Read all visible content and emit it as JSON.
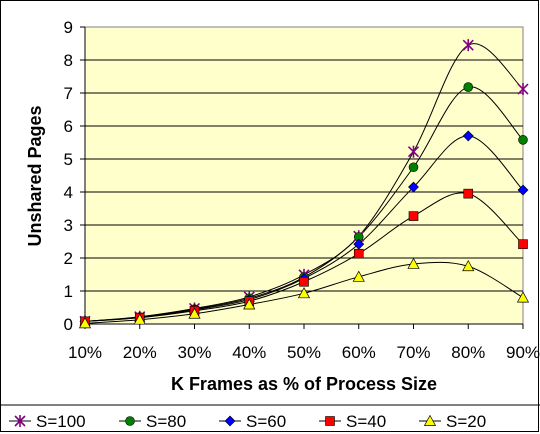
{
  "chart_data": {
    "type": "line",
    "xlabel": "K Frames as % of Process Size",
    "ylabel": "Unshared Pages",
    "categories": [
      "10%",
      "20%",
      "30%",
      "40%",
      "50%",
      "60%",
      "70%",
      "80%",
      "90%"
    ],
    "ylim": [
      0,
      9
    ],
    "yticks": [
      "0",
      "1",
      "2",
      "3",
      "4",
      "5",
      "6",
      "7",
      "8",
      "9"
    ],
    "grid": true,
    "plot_background": "#FFFFCC",
    "legend_position": "bottom",
    "series": [
      {
        "name": "S=100",
        "marker": "star",
        "color": "#800080",
        "values": [
          0.08,
          0.22,
          0.47,
          0.82,
          1.49,
          2.66,
          5.22,
          8.45,
          7.12
        ]
      },
      {
        "name": "S=80",
        "marker": "circle",
        "color": "#008000",
        "values": [
          0.08,
          0.21,
          0.45,
          0.78,
          1.42,
          2.64,
          4.75,
          7.18,
          5.58
        ]
      },
      {
        "name": "S=60",
        "marker": "diamond",
        "color": "#0000FF",
        "values": [
          0.08,
          0.2,
          0.43,
          0.74,
          1.38,
          2.42,
          4.15,
          5.7,
          4.06
        ]
      },
      {
        "name": "S=40",
        "marker": "square",
        "color": "#FF0000",
        "values": [
          0.08,
          0.19,
          0.4,
          0.69,
          1.28,
          2.13,
          3.27,
          3.95,
          2.42
        ]
      },
      {
        "name": "S=20",
        "marker": "triangle",
        "color": "#FFFF00",
        "values": [
          0.02,
          0.13,
          0.31,
          0.59,
          0.93,
          1.43,
          1.82,
          1.75,
          0.8
        ]
      }
    ]
  }
}
